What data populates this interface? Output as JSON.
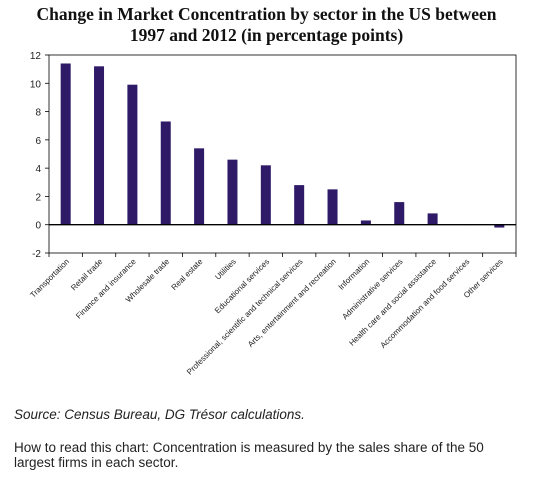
{
  "title_line1": "Change in Market Concentration by sector in the US between",
  "title_line2": "1997 and 2012 (in percentage points)",
  "source": "Source: Census Bureau, DG Trésor calculations.",
  "note": "How to read this chart: Concentration is measured by the sales share of the 50 largest firms in each sector.",
  "colors": {
    "bar": "#2e1a66",
    "axis": "#000000",
    "frame": "#000000",
    "grid": "#000000"
  },
  "chart_data": {
    "type": "bar",
    "categories": [
      "Transportation",
      "Retail trade",
      "Finance and insurance",
      "Wholesale trade",
      "Real estate",
      "Utilities",
      "Educational services",
      "Professional, scientific and technical services",
      "Arts, entertainment and recreation",
      "Information",
      "Administrative services",
      "Health care and social assistance",
      "Accommodation and food services",
      "Other services"
    ],
    "values": [
      11.4,
      11.2,
      9.9,
      7.3,
      5.4,
      4.6,
      4.2,
      2.8,
      2.5,
      0.3,
      1.6,
      0.8,
      0.05,
      -0.2
    ],
    "ylim": [
      -2,
      12
    ],
    "yticks": [
      "-2",
      "0",
      "2",
      "4",
      "6",
      "8",
      "10",
      "12"
    ],
    "grid": false,
    "legend": "none"
  }
}
